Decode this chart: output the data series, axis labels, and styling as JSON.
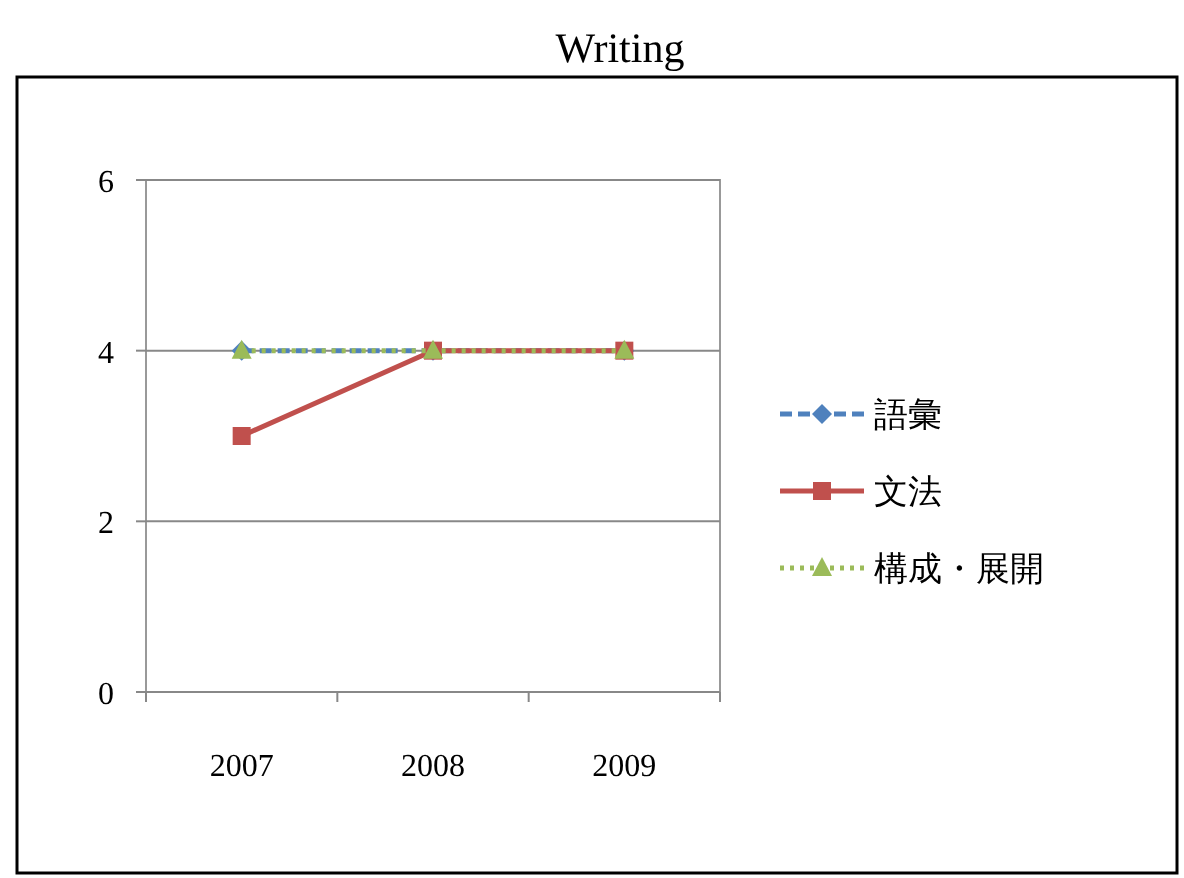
{
  "chart_data": {
    "type": "line",
    "title": "Writing",
    "categories": [
      "2007",
      "2008",
      "2009"
    ],
    "series": [
      {
        "name": "語彙",
        "color": "#4f81bd",
        "values": [
          4,
          4,
          4
        ],
        "marker": "diamond",
        "line_style": "dashed"
      },
      {
        "name": "文法",
        "color": "#c0504d",
        "values": [
          3,
          4,
          4
        ],
        "marker": "square",
        "line_style": "solid"
      },
      {
        "name": "構成・展開",
        "color": "#9bbb59",
        "values": [
          4,
          4,
          4
        ],
        "marker": "triangle",
        "line_style": "dotted"
      }
    ],
    "ylim": [
      0,
      6
    ],
    "yticks": [
      0,
      2,
      4,
      6
    ],
    "grid": "y",
    "legend": "right"
  }
}
